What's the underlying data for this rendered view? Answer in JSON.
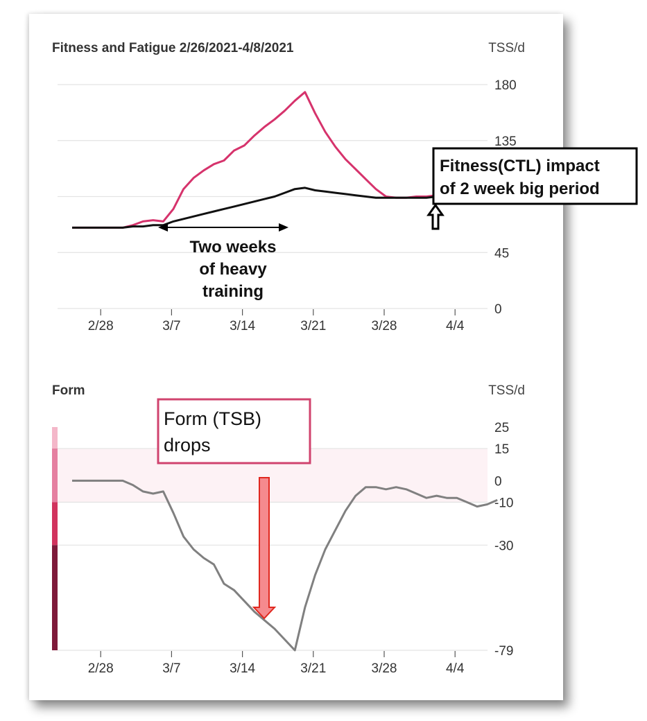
{
  "chart_data": [
    {
      "type": "line",
      "title": "Fitness and Fatigue 2/26/2021-4/8/2021",
      "unit_label": "TSS/d",
      "y_ticks": [
        0,
        45,
        135,
        180
      ],
      "ylim": [
        0,
        180
      ],
      "x_tick_labels": [
        "2/28",
        "3/7",
        "3/14",
        "3/21",
        "3/28",
        "4/4"
      ],
      "x_domain": [
        "2/26/2021",
        "4/8/2021"
      ],
      "grid": "horizontal",
      "line_colors": [
        "#D6336C",
        "#111111"
      ],
      "series": [
        {
          "values": [
            [
              0,
              65
            ],
            [
              1,
              65
            ],
            [
              2,
              65
            ],
            [
              3,
              65
            ],
            [
              4,
              65
            ],
            [
              5,
              65
            ],
            [
              6,
              67
            ],
            [
              7,
              70
            ],
            [
              8,
              71
            ],
            [
              9,
              70
            ],
            [
              10,
              80
            ],
            [
              11,
              96
            ],
            [
              12,
              105
            ],
            [
              13,
              111
            ],
            [
              14,
              116
            ],
            [
              15,
              119
            ],
            [
              16,
              127
            ],
            [
              17,
              131
            ],
            [
              18,
              139
            ],
            [
              19,
              146
            ],
            [
              20,
              152
            ],
            [
              21,
              159
            ],
            [
              22,
              167
            ],
            [
              23,
              174
            ],
            [
              24,
              157
            ],
            [
              25,
              142
            ],
            [
              26,
              130
            ],
            [
              27,
              120
            ],
            [
              28,
              112
            ],
            [
              29,
              104
            ],
            [
              30,
              96
            ],
            [
              31,
              90
            ],
            [
              32,
              89
            ],
            [
              33,
              89
            ],
            [
              34,
              90
            ],
            [
              35,
              90
            ],
            [
              36,
              91
            ],
            [
              37,
              93
            ],
            [
              38,
              95
            ],
            [
              39,
              95
            ],
            [
              40,
              97
            ],
            [
              41,
              99
            ],
            [
              42,
              100
            ]
          ]
        },
        {
          "values": [
            [
              0,
              65
            ],
            [
              1,
              65
            ],
            [
              2,
              65
            ],
            [
              3,
              65
            ],
            [
              4,
              65
            ],
            [
              5,
              65
            ],
            [
              6,
              66
            ],
            [
              7,
              66
            ],
            [
              8,
              67
            ],
            [
              9,
              67
            ],
            [
              10,
              70
            ],
            [
              11,
              72
            ],
            [
              12,
              74
            ],
            [
              13,
              76
            ],
            [
              14,
              78
            ],
            [
              15,
              80
            ],
            [
              16,
              82
            ],
            [
              17,
              84
            ],
            [
              18,
              86
            ],
            [
              19,
              88
            ],
            [
              20,
              90
            ],
            [
              21,
              93
            ],
            [
              22,
              96
            ],
            [
              23,
              97
            ],
            [
              24,
              95
            ],
            [
              25,
              94
            ],
            [
              26,
              93
            ],
            [
              27,
              92
            ],
            [
              28,
              91
            ],
            [
              29,
              90
            ],
            [
              30,
              89
            ],
            [
              31,
              89
            ],
            [
              32,
              89
            ],
            [
              33,
              89
            ],
            [
              34,
              89
            ],
            [
              35,
              89
            ],
            [
              36,
              90
            ],
            [
              37,
              90
            ],
            [
              38,
              90
            ],
            [
              39,
              91
            ],
            [
              40,
              91
            ],
            [
              41,
              91
            ],
            [
              42,
              91
            ]
          ]
        }
      ],
      "annotations": {
        "heavy_training": [
          "Two weeks",
          "of heavy",
          "training"
        ],
        "ctl_box": [
          "Fitness(CTL) impact",
          "of 2 week big period"
        ]
      }
    },
    {
      "type": "line",
      "title": "Form",
      "unit_label": "TSS/d",
      "y_ticks": [
        25,
        15,
        0,
        -10,
        -30,
        -79
      ],
      "ylim": [
        -79,
        25
      ],
      "x_tick_labels": [
        "2/28",
        "3/7",
        "3/14",
        "3/21",
        "3/28",
        "4/4"
      ],
      "line_color": "#808080",
      "zone_colors": [
        "#F4B7C9",
        "#E57FA0",
        "#D1335E",
        "#7E1A3A"
      ],
      "band_color": "#FDF2F5",
      "series": [
        {
          "values": [
            [
              0,
              0
            ],
            [
              1,
              0
            ],
            [
              2,
              0
            ],
            [
              3,
              0
            ],
            [
              4,
              0
            ],
            [
              5,
              0
            ],
            [
              6,
              -2
            ],
            [
              7,
              -5
            ],
            [
              8,
              -6
            ],
            [
              9,
              -5
            ],
            [
              10,
              -15
            ],
            [
              11,
              -26
            ],
            [
              12,
              -32
            ],
            [
              13,
              -36
            ],
            [
              14,
              -39
            ],
            [
              15,
              -48
            ],
            [
              16,
              -51
            ],
            [
              17,
              -56
            ],
            [
              18,
              -61
            ],
            [
              19,
              -65
            ],
            [
              20,
              -69
            ],
            [
              21,
              -74
            ],
            [
              22,
              -79
            ],
            [
              23,
              -59
            ],
            [
              24,
              -44
            ],
            [
              25,
              -32
            ],
            [
              26,
              -23
            ],
            [
              27,
              -14
            ],
            [
              28,
              -7
            ],
            [
              29,
              -3
            ],
            [
              30,
              -3
            ],
            [
              31,
              -4
            ],
            [
              32,
              -3
            ],
            [
              33,
              -4
            ],
            [
              34,
              -6
            ],
            [
              35,
              -8
            ],
            [
              36,
              -7
            ],
            [
              37,
              -8
            ],
            [
              38,
              -8
            ],
            [
              39,
              -10
            ],
            [
              40,
              -12
            ],
            [
              41,
              -11
            ],
            [
              42,
              -9
            ]
          ]
        }
      ],
      "annotations": {
        "form_box": [
          "Form (TSB)",
          "drops"
        ]
      }
    }
  ]
}
